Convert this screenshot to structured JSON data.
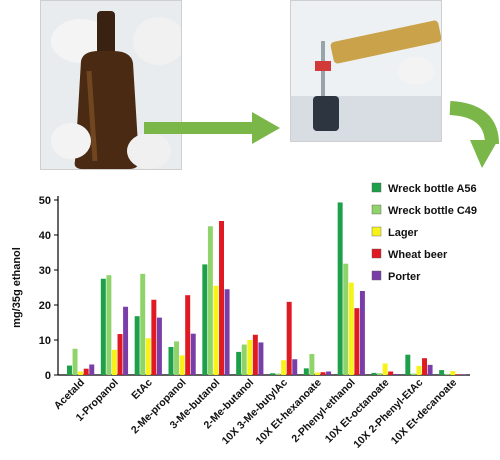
{
  "figure": {
    "photos": [
      {
        "name": "wreck-bottle-photo",
        "description_icon": "bottle-icon"
      },
      {
        "name": "sampling-apparatus-photo",
        "description_icon": "syringe-icon"
      }
    ],
    "arrow_color": "#7ab648"
  },
  "chart_data": {
    "type": "bar",
    "title": "",
    "xlabel": "",
    "ylabel": "mg/35g ethanol",
    "ylim": [
      0,
      50
    ],
    "yticks": [
      0,
      10,
      20,
      30,
      40,
      50
    ],
    "grid": false,
    "legend_position": "top-right",
    "categories": [
      "Acetald",
      "1-Propanol",
      "EtAc",
      "2-Me-propanol",
      "3-Me-butanol",
      "2-Me-butanol",
      "10X 3-Me-butylAc",
      "10X Et-hexanoate",
      "2-Phenyl-ethanol",
      "10X Et-octanoate",
      "10X 2-Phenyl-EtAc",
      "10X Et-decanoate"
    ],
    "series": [
      {
        "name": "Wreck bottle A56",
        "color": "#1ea04a",
        "values": [
          2.7,
          27.5,
          16.8,
          8.0,
          31.6,
          6.6,
          0.5,
          1.9,
          49.3,
          0.6,
          5.8,
          1.4
        ]
      },
      {
        "name": "Wreck bottle C49",
        "color": "#8fd46a",
        "values": [
          7.5,
          28.5,
          28.9,
          9.6,
          42.5,
          8.7,
          0.4,
          6.0,
          31.8,
          0.5,
          0.4,
          0.3
        ]
      },
      {
        "name": "Lager",
        "color": "#f7f31a",
        "values": [
          1.0,
          7.2,
          10.5,
          5.6,
          25.5,
          10.0,
          4.2,
          0.7,
          26.4,
          3.3,
          2.6,
          1.1
        ]
      },
      {
        "name": "Wheat beer",
        "color": "#e01a22",
        "values": [
          1.8,
          11.7,
          21.5,
          22.8,
          44.0,
          11.5,
          20.9,
          0.8,
          19.1,
          1.0,
          4.8,
          0.2
        ]
      },
      {
        "name": "Porter",
        "color": "#7a3ea8",
        "values": [
          3.0,
          19.5,
          16.4,
          11.8,
          24.5,
          9.3,
          4.5,
          1.0,
          24.0,
          0.3,
          2.9,
          0.2
        ]
      }
    ]
  }
}
